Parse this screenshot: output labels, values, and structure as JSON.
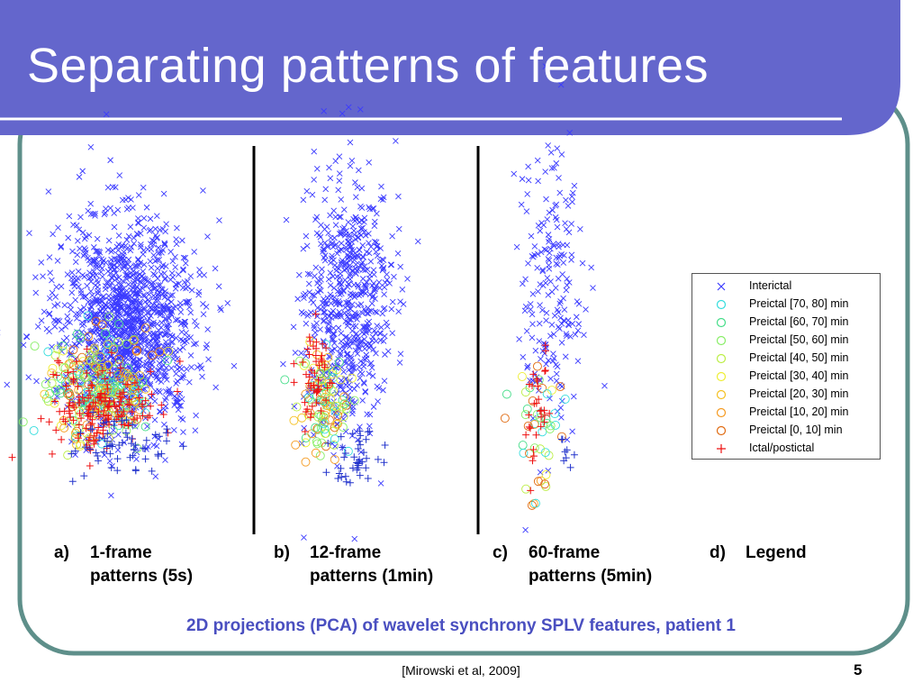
{
  "slide": {
    "title": "Separating patterns of features",
    "subtitle": "2D projections (PCA) of wavelet synchrony SPLV features, patient 1",
    "citation": "[Mirowski et al, 2009]",
    "page_number": "5",
    "colors": {
      "title_bar": "#6466cc",
      "border": "#5e8f8a",
      "subtitle": "#4a4fc0"
    }
  },
  "captions": [
    {
      "label": "a)",
      "line1": "1-frame",
      "line2": "patterns (5s)"
    },
    {
      "label": "b)",
      "line1": "12-frame",
      "line2": "patterns (1min)"
    },
    {
      "label": "c)",
      "line1": "60-frame",
      "line2": "patterns (5min)"
    },
    {
      "label": "d)",
      "line1": "Legend",
      "line2": ""
    }
  ],
  "legend": [
    {
      "label": "Interictal",
      "marker": "x",
      "color": "#3a3aff"
    },
    {
      "label": "Preictal [70, 80] min",
      "marker": "o",
      "color": "#33dddd"
    },
    {
      "label": "Preictal [60, 70] min",
      "marker": "o",
      "color": "#44dd88"
    },
    {
      "label": "Preictal [50, 60] min",
      "marker": "o",
      "color": "#88ee66"
    },
    {
      "label": "Preictal [40, 50] min",
      "marker": "o",
      "color": "#bbee44"
    },
    {
      "label": "Preictal [30, 40] min",
      "marker": "o",
      "color": "#eeee33"
    },
    {
      "label": "Preictal [20, 30] min",
      "marker": "o",
      "color": "#f5c020"
    },
    {
      "label": "Preictal [10, 20] min",
      "marker": "o",
      "color": "#f59a20"
    },
    {
      "label": "Preictal [0, 10] min",
      "marker": "o",
      "color": "#e06a10"
    },
    {
      "label": "Ictal/postictal",
      "marker": "+",
      "color": "#ee1111"
    }
  ]
}
